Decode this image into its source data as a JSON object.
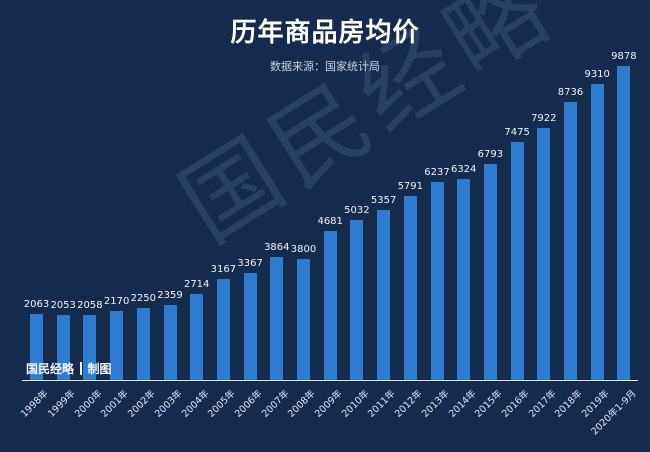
{
  "header": {
    "title": "历年商品房均价",
    "subtitle": "数据来源：国家统计局"
  },
  "watermark": "国民经略",
  "credit": {
    "brand": "国民经略",
    "suffix": "制图"
  },
  "colors": {
    "background": "#142b4d",
    "bar": "#2e7bd0",
    "text": "#ffffff"
  },
  "chart_data": {
    "type": "bar",
    "title": "历年商品房均价",
    "subtitle": "数据来源：国家统计局",
    "xlabel": "",
    "ylabel": "",
    "grid": false,
    "legend": null,
    "ylim": [
      0,
      10000
    ],
    "categories": [
      "1998年",
      "1999年",
      "2000年",
      "2001年",
      "2002年",
      "2003年",
      "2004年",
      "2005年",
      "2006年",
      "2007年",
      "2008年",
      "2009年",
      "2010年",
      "2011年",
      "2012年",
      "2013年",
      "2014年",
      "2015年",
      "2016年",
      "2017年",
      "2018年",
      "2019年",
      "2020年1-9月"
    ],
    "values": [
      2063,
      2053,
      2058,
      2170,
      2250,
      2359,
      2714,
      3167,
      3367,
      3864,
      3800,
      4681,
      5032,
      5357,
      5791,
      6237,
      6324,
      6793,
      7475,
      7922,
      8736,
      9310,
      9878
    ]
  }
}
